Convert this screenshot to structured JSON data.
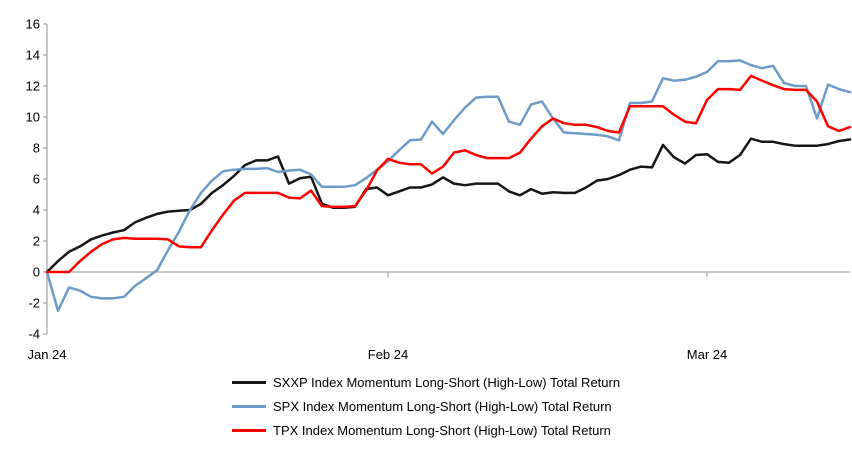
{
  "chart_data": {
    "type": "line",
    "title": "",
    "y_axis": {
      "min": -4,
      "max": 16,
      "step": 2,
      "ticks": [
        16,
        14,
        12,
        10,
        8,
        6,
        4,
        2,
        0,
        -2,
        -4
      ]
    },
    "x_axis": {
      "labels": [
        {
          "text": "Jan 24",
          "day": 0
        },
        {
          "text": "Feb 24",
          "day": 31
        },
        {
          "text": "Mar 24",
          "day": 60
        }
      ]
    },
    "grid": "zero-line-only",
    "axis_color": "#a3a3a3",
    "legend_position": "bottom",
    "series": [
      {
        "id": "sxxp",
        "name": "SXXP Index Momentum Long-Short (High-Low) Total Return",
        "color": "#161616",
        "values": [
          0,
          0.7,
          1.3,
          1.65,
          2.1,
          2.35,
          2.55,
          2.7,
          3.2,
          3.5,
          3.75,
          3.9,
          3.95,
          4.0,
          4.4,
          5.1,
          5.6,
          6.2,
          6.9,
          7.2,
          7.2,
          7.45,
          5.7,
          6.05,
          6.15,
          4.4,
          4.15,
          4.15,
          4.2,
          5.35,
          5.45,
          4.95,
          5.2,
          5.45,
          5.45,
          5.65,
          6.1,
          5.7,
          5.6,
          5.7,
          5.7,
          5.7,
          5.2,
          4.95,
          5.35,
          5.05,
          5.15,
          5.1,
          5.1,
          5.45,
          5.9,
          6.0,
          6.25,
          6.6,
          6.8,
          6.75,
          8.2,
          7.4,
          7.0,
          7.55,
          7.6,
          7.1,
          7.05,
          7.55,
          8.6,
          8.4,
          8.4,
          8.25,
          8.15,
          8.15,
          8.15,
          8.25,
          8.45,
          8.55
        ]
      },
      {
        "id": "spx",
        "name": "SPX Index Momentum Long-Short (High-Low) Total Return",
        "color": "#6d9bc9",
        "values": [
          0,
          -2.5,
          -1.0,
          -1.2,
          -1.6,
          -1.7,
          -1.7,
          -1.6,
          -0.9,
          -0.4,
          0.1,
          1.4,
          2.6,
          4.0,
          5.1,
          5.9,
          6.5,
          6.6,
          6.65,
          6.65,
          6.7,
          6.45,
          6.55,
          6.6,
          6.3,
          5.5,
          5.5,
          5.5,
          5.6,
          6.05,
          6.6,
          7.15,
          7.85,
          8.5,
          8.55,
          9.7,
          8.9,
          9.8,
          10.6,
          11.25,
          11.3,
          11.3,
          9.7,
          9.5,
          10.8,
          11.0,
          9.9,
          9.0,
          8.95,
          8.9,
          8.85,
          8.75,
          8.5,
          10.9,
          10.9,
          11.0,
          12.5,
          12.35,
          12.4,
          12.6,
          12.9,
          13.6,
          13.6,
          13.65,
          13.35,
          13.15,
          13.3,
          12.2,
          12.0,
          12.0,
          9.9,
          12.1,
          11.8,
          11.6
        ]
      },
      {
        "id": "tpx",
        "name": "TPX Index Momentum Long-Short (High-Low) Total Return",
        "color": "#fe0000",
        "values": [
          0,
          0,
          0,
          0.7,
          1.3,
          1.8,
          2.1,
          2.2,
          2.15,
          2.15,
          2.15,
          2.1,
          1.65,
          1.6,
          1.6,
          2.7,
          3.7,
          4.6,
          5.1,
          5.1,
          5.1,
          5.1,
          4.8,
          4.75,
          5.25,
          4.25,
          4.2,
          4.2,
          4.25,
          5.25,
          6.55,
          7.3,
          7.05,
          6.95,
          6.95,
          6.35,
          6.8,
          7.7,
          7.85,
          7.55,
          7.35,
          7.35,
          7.35,
          7.7,
          8.6,
          9.4,
          9.9,
          9.6,
          9.5,
          9.5,
          9.35,
          9.1,
          9.0,
          10.7,
          10.7,
          10.7,
          10.7,
          10.15,
          9.7,
          9.6,
          11.1,
          11.8,
          11.8,
          11.75,
          12.65,
          12.35,
          12.05,
          11.8,
          11.75,
          11.75,
          11.0,
          9.4,
          9.1,
          9.35
        ]
      }
    ]
  }
}
